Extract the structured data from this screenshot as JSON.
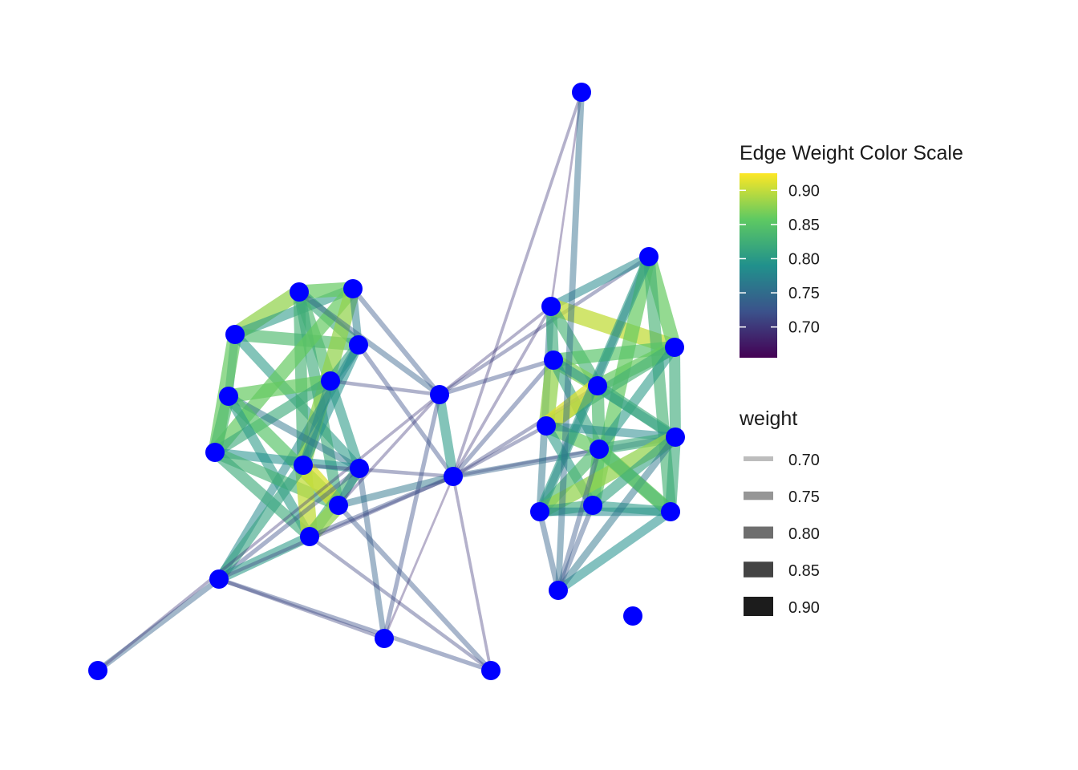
{
  "chart_data": {
    "type": "network",
    "node_color": "#0000ff",
    "nodes": [
      {
        "id": 1
      },
      {
        "id": 2
      },
      {
        "id": 3
      },
      {
        "id": 4
      },
      {
        "id": 5
      },
      {
        "id": 6
      },
      {
        "id": 7
      },
      {
        "id": 8
      },
      {
        "id": 9
      },
      {
        "id": 10
      },
      {
        "id": 11
      },
      {
        "id": 12
      },
      {
        "id": 13
      },
      {
        "id": 14
      },
      {
        "id": 15
      },
      {
        "id": 16
      },
      {
        "id": 17
      },
      {
        "id": 18
      },
      {
        "id": 19
      },
      {
        "id": 20
      },
      {
        "id": 21
      },
      {
        "id": 22
      },
      {
        "id": 23
      },
      {
        "id": 24
      },
      {
        "id": 25
      },
      {
        "id": 26
      },
      {
        "id": 27
      },
      {
        "id": 28
      },
      {
        "id": 29
      },
      {
        "id": 30
      }
    ],
    "edges": [
      [
        1,
        2,
        0.88
      ],
      [
        1,
        3,
        0.8
      ],
      [
        1,
        4,
        0.84
      ],
      [
        1,
        6,
        0.78
      ],
      [
        1,
        7,
        0.86
      ],
      [
        1,
        9,
        0.8
      ],
      [
        2,
        3,
        0.86
      ],
      [
        2,
        4,
        0.82
      ],
      [
        2,
        5,
        0.84
      ],
      [
        2,
        8,
        0.83
      ],
      [
        2,
        10,
        0.82
      ],
      [
        3,
        7,
        0.86
      ],
      [
        3,
        8,
        0.88
      ],
      [
        3,
        4,
        0.77
      ],
      [
        4,
        5,
        0.81
      ],
      [
        4,
        8,
        0.79
      ],
      [
        4,
        12,
        0.78
      ],
      [
        5,
        6,
        0.86
      ],
      [
        5,
        7,
        0.82
      ],
      [
        5,
        9,
        0.8
      ],
      [
        5,
        8,
        0.78
      ],
      [
        6,
        7,
        0.84
      ],
      [
        6,
        9,
        0.76
      ],
      [
        6,
        10,
        0.85
      ],
      [
        6,
        11,
        0.8
      ],
      [
        7,
        9,
        0.79
      ],
      [
        7,
        10,
        0.83
      ],
      [
        7,
        11,
        0.82
      ],
      [
        8,
        10,
        0.91
      ],
      [
        8,
        11,
        0.9
      ],
      [
        8,
        12,
        0.81
      ],
      [
        9,
        11,
        0.83
      ],
      [
        9,
        10,
        0.77
      ],
      [
        9,
        12,
        0.72
      ],
      [
        9,
        14,
        0.74
      ],
      [
        10,
        11,
        0.88
      ],
      [
        10,
        15,
        0.73
      ],
      [
        11,
        12,
        0.8
      ],
      [
        12,
        13,
        0.74
      ],
      [
        12,
        15,
        0.72
      ],
      [
        12,
        14,
        0.71
      ],
      [
        2,
        16,
        0.74
      ],
      [
        3,
        16,
        0.73
      ],
      [
        5,
        16,
        0.71
      ],
      [
        4,
        17,
        0.72
      ],
      [
        8,
        17,
        0.71
      ],
      [
        10,
        16,
        0.7
      ],
      [
        10,
        17,
        0.76
      ],
      [
        11,
        17,
        0.72
      ],
      [
        12,
        17,
        0.71
      ],
      [
        11,
        15,
        0.71
      ],
      [
        16,
        17,
        0.8
      ],
      [
        16,
        19,
        0.7
      ],
      [
        16,
        20,
        0.71
      ],
      [
        16,
        21,
        0.72
      ],
      [
        17,
        21,
        0.72
      ],
      [
        17,
        23,
        0.71
      ],
      [
        17,
        25,
        0.7
      ],
      [
        17,
        18,
        0.7
      ],
      [
        17,
        19,
        0.7
      ],
      [
        17,
        26,
        0.74
      ],
      [
        17,
        24,
        0.71
      ],
      [
        15,
        17,
        0.7
      ],
      [
        14,
        17,
        0.69
      ],
      [
        18,
        19,
        0.69
      ],
      [
        19,
        20,
        0.78
      ],
      [
        19,
        27,
        0.76
      ],
      [
        19,
        21,
        0.82
      ],
      [
        19,
        22,
        0.9
      ],
      [
        19,
        23,
        0.83
      ],
      [
        20,
        27,
        0.76
      ],
      [
        20,
        28,
        0.86
      ],
      [
        20,
        22,
        0.86
      ],
      [
        20,
        29,
        0.83
      ],
      [
        21,
        22,
        0.85
      ],
      [
        21,
        23,
        0.87
      ],
      [
        21,
        24,
        0.88
      ],
      [
        21,
        25,
        0.81
      ],
      [
        21,
        26,
        0.79
      ],
      [
        22,
        23,
        0.86
      ],
      [
        22,
        24,
        0.83
      ],
      [
        22,
        25,
        0.8
      ],
      [
        22,
        26,
        0.82
      ],
      [
        23,
        24,
        0.91
      ],
      [
        23,
        25,
        0.84
      ],
      [
        23,
        26,
        0.82
      ],
      [
        24,
        25,
        0.86
      ],
      [
        24,
        26,
        0.78
      ],
      [
        24,
        28,
        0.8
      ],
      [
        25,
        26,
        0.82
      ],
      [
        25,
        27,
        0.84
      ],
      [
        25,
        28,
        0.85
      ],
      [
        25,
        29,
        0.86
      ],
      [
        26,
        27,
        0.88
      ],
      [
        26,
        28,
        0.81
      ],
      [
        26,
        29,
        0.82
      ],
      [
        27,
        28,
        0.82
      ],
      [
        27,
        29,
        0.78
      ],
      [
        28,
        29,
        0.8
      ],
      [
        29,
        30,
        0.79
      ],
      [
        26,
        30,
        0.76
      ],
      [
        27,
        30,
        0.74
      ],
      [
        25,
        30,
        0.73
      ],
      [
        28,
        30,
        0.73
      ],
      [
        25,
        29,
        0.84
      ],
      [
        20,
        27,
        0.8
      ],
      [
        14,
        16,
        0.72
      ],
      [
        13,
        16,
        0.7
      ],
      [
        18,
        30,
        0.75
      ]
    ],
    "color_legend": {
      "title": "Edge Weight Color Scale",
      "ticks": [
        "0.90",
        "0.85",
        "0.80",
        "0.75",
        "0.70"
      ],
      "tick_values": [
        0.9,
        0.85,
        0.8,
        0.75,
        0.7
      ],
      "range": [
        0.655,
        0.925
      ],
      "palette": [
        "#440154",
        "#3b528b",
        "#21918c",
        "#5ec962",
        "#fde725"
      ]
    },
    "size_legend": {
      "title": "weight",
      "entries": [
        {
          "label": "0.70",
          "value": 0.7,
          "color": "#bdbdbd"
        },
        {
          "label": "0.75",
          "value": 0.75,
          "color": "#969696"
        },
        {
          "label": "0.80",
          "value": 0.8,
          "color": "#6e6e6e"
        },
        {
          "label": "0.85",
          "value": 0.85,
          "color": "#444444"
        },
        {
          "label": "0.90",
          "value": 0.9,
          "color": "#1c1c1c"
        }
      ]
    }
  }
}
